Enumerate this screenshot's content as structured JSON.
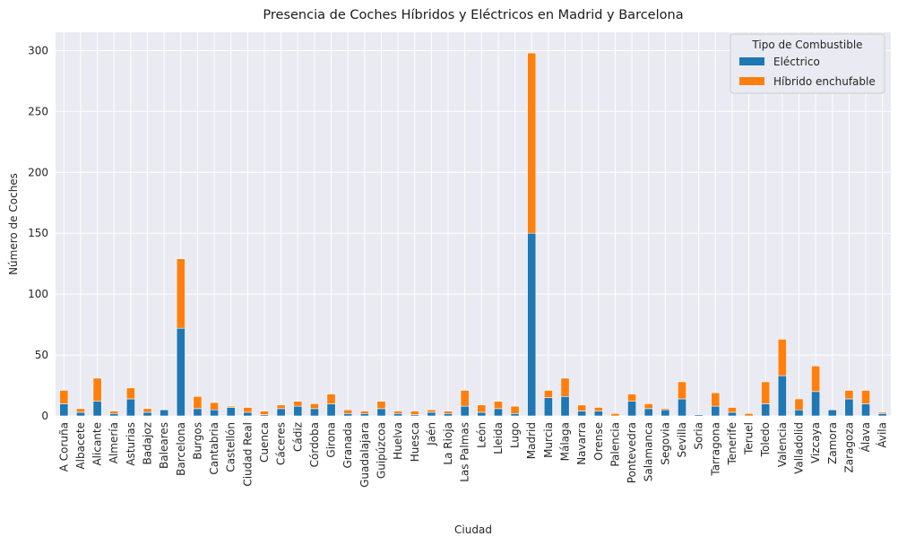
{
  "chart_data": {
    "type": "bar",
    "stacked": true,
    "title": "Presencia de Coches Híbridos y Eléctricos en Madrid y Barcelona",
    "xlabel": "Ciudad",
    "ylabel": "Número de Coches",
    "ylim": [
      0,
      315
    ],
    "yticks": [
      0,
      50,
      100,
      150,
      200,
      250,
      300
    ],
    "grid": true,
    "legend": {
      "title": "Tipo de Combustible",
      "position": "top-right"
    },
    "categories": [
      "A Coruña",
      "Albacete",
      "Alicante",
      "Almería",
      "Asturias",
      "Badajoz",
      "Baleares",
      "Barcelona",
      "Burgos",
      "Cantabria",
      "Castellón",
      "Ciudad Real",
      "Cuenca",
      "Cáceres",
      "Cádiz",
      "Córdoba",
      "Girona",
      "Granada",
      "Guadalajara",
      "Guipúzcoa",
      "Huelva",
      "Huesca",
      "Jaén",
      "La Rioja",
      "Las Palmas",
      "León",
      "Lleida",
      "Lugo",
      "Madrid",
      "Murcia",
      "Málaga",
      "Navarra",
      "Orense",
      "Palencia",
      "Pontevedra",
      "Salamanca",
      "Segovia",
      "Sevilla",
      "Soria",
      "Tarragona",
      "Tenerife",
      "Teruel",
      "Toledo",
      "Valencia",
      "Valladolid",
      "Vizcaya",
      "Zamora",
      "Zaragoza",
      "Álava",
      "Ávila"
    ],
    "series": [
      {
        "name": "Eléctrico",
        "color": "#1f77b4",
        "values": [
          10,
          3,
          12,
          2,
          14,
          3,
          5,
          72,
          6,
          5,
          7,
          3,
          1,
          6,
          8,
          6,
          10,
          2,
          2,
          6,
          2,
          1,
          3,
          2,
          8,
          3,
          6,
          2,
          150,
          15,
          16,
          4,
          4,
          0,
          12,
          6,
          5,
          14,
          1,
          8,
          3,
          0,
          10,
          33,
          5,
          20,
          5,
          14,
          10,
          2
        ]
      },
      {
        "name": "Híbrido enchufable",
        "color": "#ff7f0e",
        "values": [
          11,
          3,
          19,
          2,
          9,
          3,
          0,
          57,
          10,
          6,
          1,
          4,
          3,
          3,
          4,
          4,
          8,
          3,
          2,
          6,
          2,
          3,
          2,
          2,
          13,
          6,
          6,
          6,
          148,
          6,
          15,
          5,
          3,
          2,
          6,
          4,
          1,
          14,
          0,
          11,
          4,
          2,
          18,
          30,
          9,
          21,
          0,
          7,
          11,
          1
        ]
      }
    ]
  }
}
